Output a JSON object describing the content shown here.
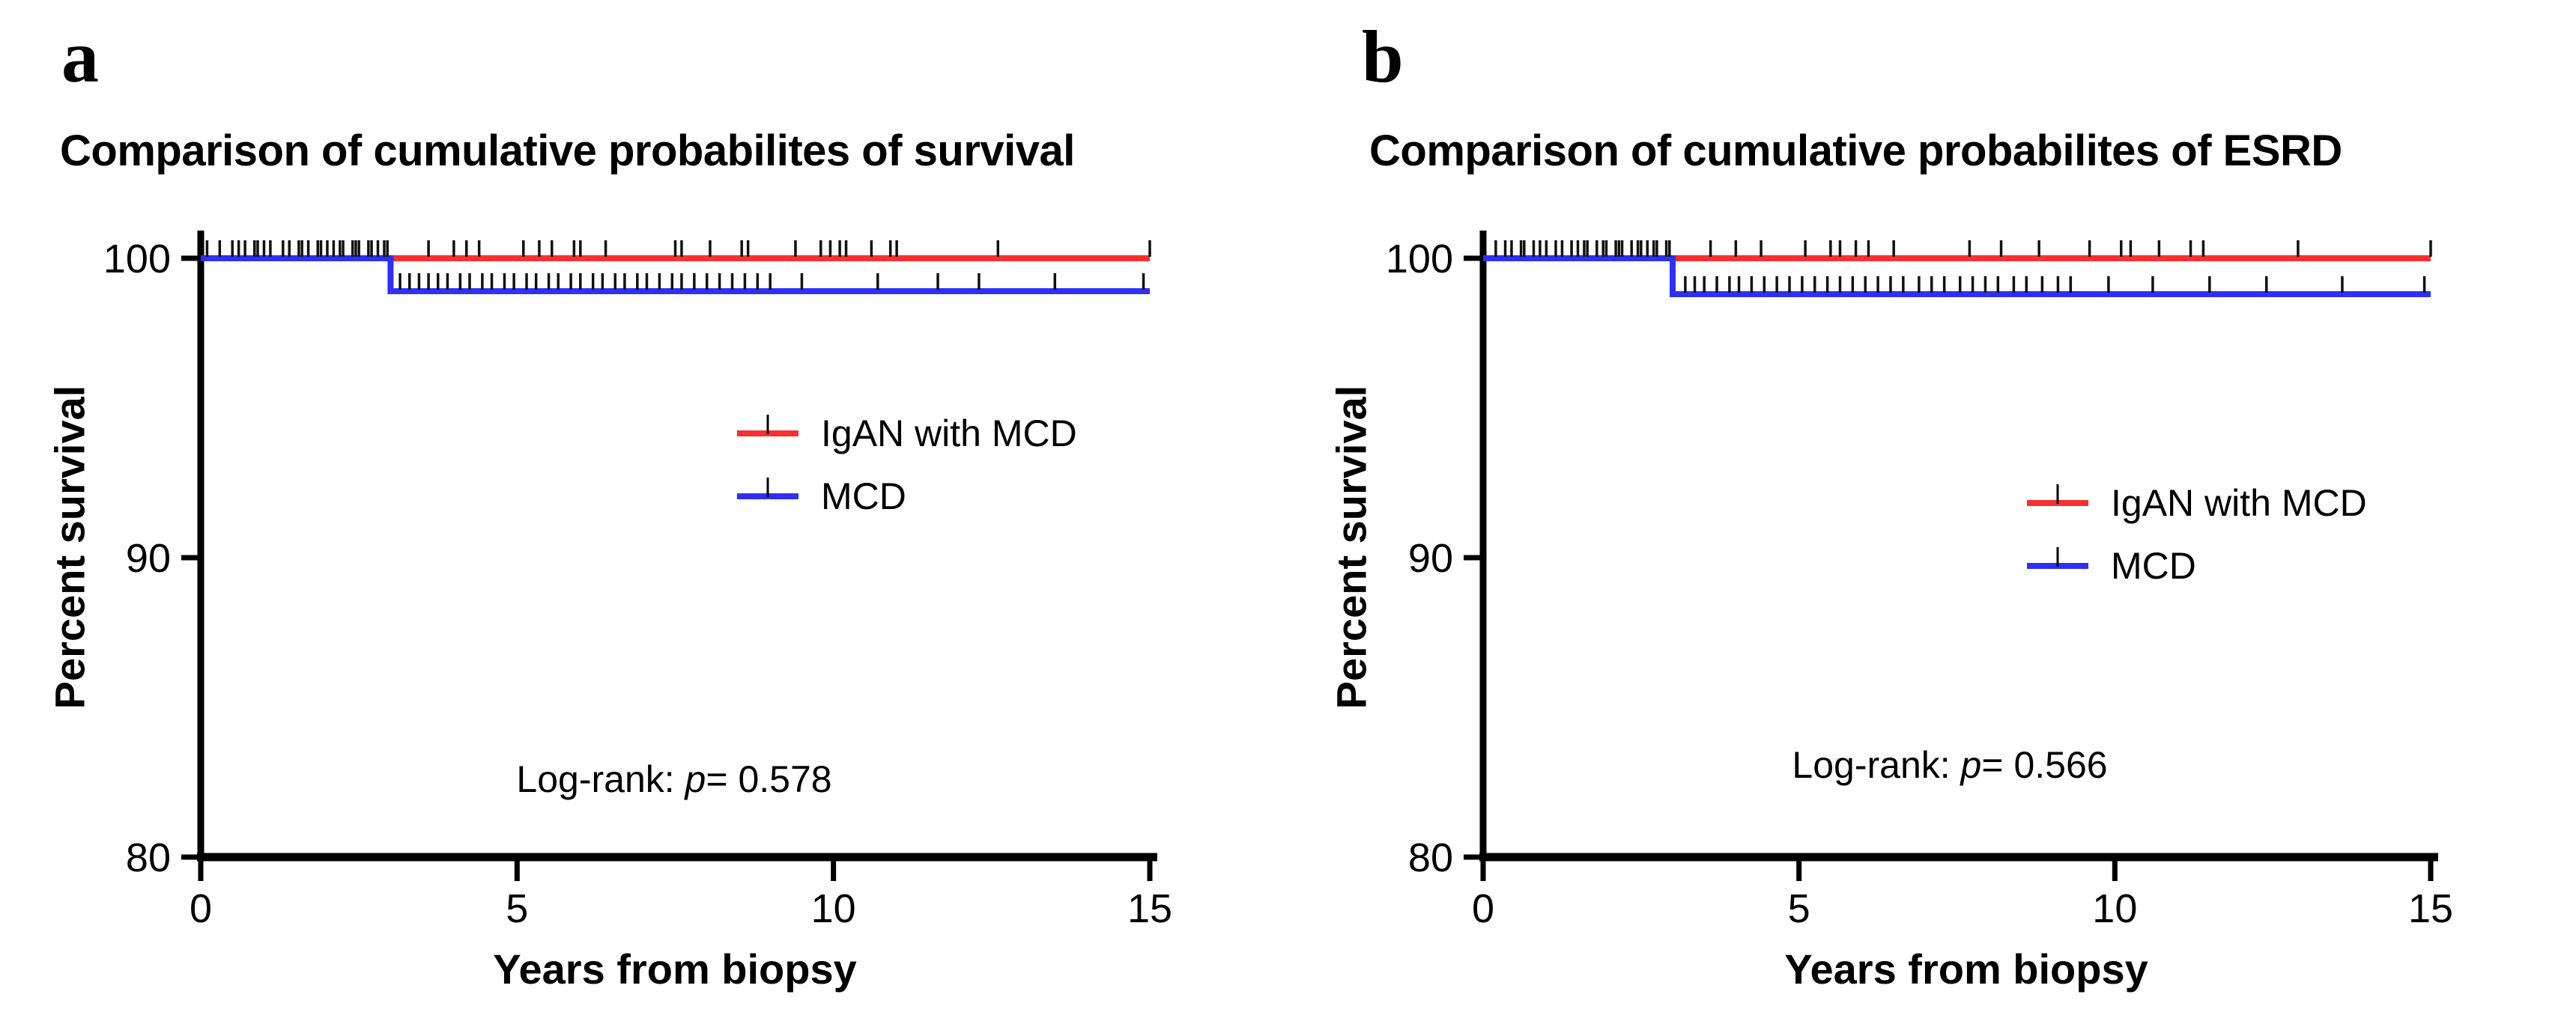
{
  "figure": {
    "background": "#ffffff"
  },
  "colors": {
    "igan_red": "#fb2f2f",
    "mcd_blue": "#2f2ffb",
    "axis_black": "#000000",
    "censor_black": "#111111"
  },
  "chart_data": [
    {
      "type": "line",
      "subtype": "kaplan-meier-step",
      "panel_label": "a",
      "title": "Comparison of cumulative probabilites of survival",
      "xlabel": "Years from biopsy",
      "ylabel": "Percent survival",
      "xlim": [
        0,
        15
      ],
      "ylim": [
        80,
        101
      ],
      "xticks": [
        "0",
        "5",
        "10",
        "15"
      ],
      "xtick_values": [
        0,
        5,
        10,
        15
      ],
      "yticks": [
        "100",
        "90",
        "80"
      ],
      "ytick_values": [
        100,
        90,
        80
      ],
      "grid": false,
      "legend_position": "center-right-inside",
      "annotation": {
        "text_before": "Log-rank: ",
        "italic": "p",
        "text_after": "= 0.578"
      },
      "series": [
        {
          "name": "IgAN with MCD",
          "color_key": "igan_red",
          "steps": [
            [
              0,
              100
            ],
            [
              15,
              100
            ]
          ],
          "censor_times": [
            0.1,
            0.5,
            0.7,
            0.85,
            1.0,
            1.3,
            1.55,
            1.7,
            1.85,
            2.0,
            2.1,
            2.25,
            2.4,
            2.5,
            2.65,
            2.8,
            2.9,
            3.6,
            4.0,
            4.2,
            4.4,
            5.1,
            5.35,
            5.55,
            5.9,
            6.0,
            6.4,
            7.5,
            7.6,
            8.05,
            8.55,
            8.65,
            9.4,
            9.8,
            9.95,
            10.1,
            10.2,
            10.6,
            10.9,
            11.0,
            12.6,
            15.0
          ]
        },
        {
          "name": "MCD",
          "color_key": "mcd_blue",
          "steps": [
            [
              0,
              100
            ],
            [
              3,
              100
            ],
            [
              3,
              98.9
            ],
            [
              15,
              98.9
            ]
          ],
          "censor_times": [
            0.3,
            0.6,
            0.9,
            1.1,
            1.4,
            1.6,
            1.9,
            2.2,
            2.45,
            2.7,
            2.95,
            3.15,
            3.3,
            3.45,
            3.6,
            3.75,
            3.9,
            4.1,
            4.25,
            4.45,
            4.6,
            4.8,
            4.95,
            5.15,
            5.3,
            5.5,
            5.65,
            5.85,
            6.0,
            6.2,
            6.35,
            6.55,
            6.7,
            6.9,
            7.05,
            7.25,
            7.45,
            7.6,
            7.8,
            8.0,
            8.2,
            8.4,
            8.6,
            8.8,
            9.0,
            9.5,
            10.7,
            11.65,
            12.3,
            13.5,
            14.9
          ]
        }
      ]
    },
    {
      "type": "line",
      "subtype": "kaplan-meier-step",
      "panel_label": "b",
      "title": "Comparison of cumulative probabilites of ESRD",
      "xlabel": "Years from biopsy",
      "ylabel": "Percent survival",
      "xlim": [
        0,
        15
      ],
      "ylim": [
        80,
        101
      ],
      "xticks": [
        "0",
        "5",
        "10",
        "15"
      ],
      "xtick_values": [
        0,
        5,
        10,
        15
      ],
      "yticks": [
        "100",
        "90",
        "80"
      ],
      "ytick_values": [
        100,
        90,
        80
      ],
      "grid": false,
      "legend_position": "center-right-inside",
      "annotation": {
        "text_before": "Log-rank: ",
        "italic": "p",
        "text_after": "= 0.566"
      },
      "series": [
        {
          "name": "IgAN with MCD",
          "color_key": "igan_red",
          "steps": [
            [
              0,
              100
            ],
            [
              15,
              100
            ]
          ],
          "censor_times": [
            0.2,
            0.45,
            0.65,
            0.8,
            1.0,
            1.25,
            1.5,
            1.65,
            1.8,
            1.95,
            2.1,
            2.2,
            2.35,
            2.5,
            2.6,
            2.75,
            2.9,
            3.6,
            4.0,
            4.4,
            5.1,
            5.5,
            5.65,
            5.9,
            6.1,
            6.5,
            7.7,
            8.2,
            8.8,
            9.6,
            10.1,
            10.25,
            10.7,
            11.2,
            11.4,
            12.9,
            15.0
          ]
        },
        {
          "name": "MCD",
          "color_key": "mcd_blue",
          "steps": [
            [
              0,
              100
            ],
            [
              3,
              100
            ],
            [
              3,
              98.8
            ],
            [
              15,
              98.8
            ]
          ],
          "censor_times": [
            0.35,
            0.6,
            0.9,
            1.15,
            1.4,
            1.6,
            1.9,
            2.15,
            2.45,
            2.7,
            2.95,
            3.2,
            3.35,
            3.5,
            3.7,
            3.9,
            4.05,
            4.25,
            4.45,
            4.65,
            4.85,
            5.05,
            5.25,
            5.45,
            5.65,
            5.85,
            6.05,
            6.25,
            6.45,
            6.65,
            6.9,
            7.1,
            7.3,
            7.55,
            7.75,
            7.95,
            8.15,
            8.4,
            8.6,
            8.85,
            9.1,
            9.3,
            9.9,
            10.6,
            11.5,
            12.4,
            13.6,
            14.9
          ]
        }
      ]
    }
  ]
}
